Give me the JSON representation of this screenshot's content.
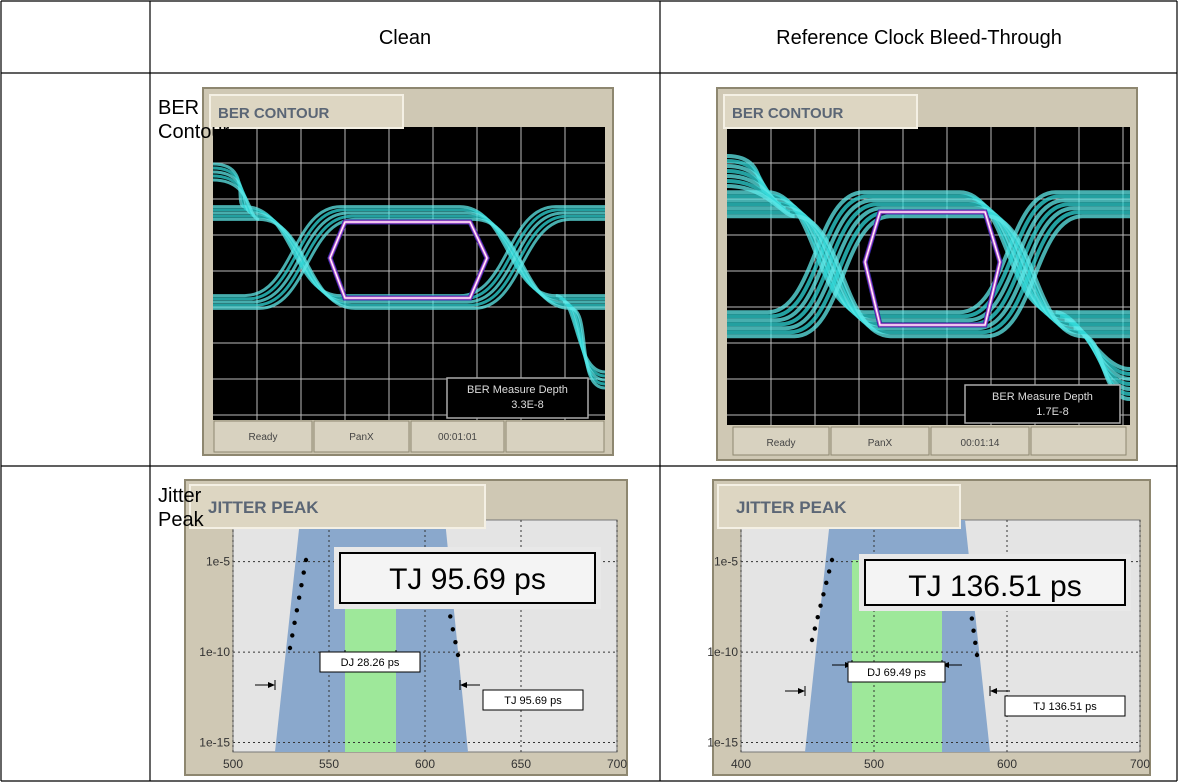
{
  "table": {
    "columns": [
      "Clean",
      "Reference Clock Bleed-Through"
    ],
    "rows": [
      "BER Contour",
      "Jitter Peak"
    ]
  },
  "ber_panels": [
    {
      "title": "BER CONTOUR",
      "depth_label": "BER Measure Depth",
      "depth": "3.3E-8",
      "status": [
        "Ready",
        "PanX",
        "00:01:01"
      ]
    },
    {
      "title": "BER CONTOUR",
      "depth_label": "BER Measure Depth",
      "depth": "1.7E-8",
      "status": [
        "Ready",
        "PanX",
        "00:01:14"
      ]
    }
  ],
  "jitter_panels": [
    {
      "title": "JITTER PEAK",
      "tj_big": "TJ 95.69 ps",
      "dj": "DJ 28.26 ps",
      "tj": "TJ 95.69 ps",
      "log_y": true,
      "ylim": [
        0.002,
        3e-16
      ],
      "yticks": [
        {
          "value": 1e-05,
          "label": "1e-5"
        },
        {
          "value": 1e-10,
          "label": "1e-10"
        },
        {
          "value": 1e-15,
          "label": "1e-15"
        }
      ],
      "xlim": [
        500,
        700
      ],
      "xticks": [
        500,
        550,
        600,
        650,
        700
      ]
    },
    {
      "title": "JITTER PEAK",
      "tj_big": "TJ 136.51 ps",
      "dj": "DJ 69.49 ps",
      "tj": "TJ 136.51 ps",
      "log_y": true,
      "ylim": [
        0.002,
        3e-16
      ],
      "yticks": [
        {
          "value": 1e-05,
          "label": "1e-5"
        },
        {
          "value": 1e-10,
          "label": "1e-10"
        },
        {
          "value": 1e-15,
          "label": "1e-15"
        }
      ],
      "xlim": [
        400,
        700
      ],
      "xticks": [
        400,
        500,
        600,
        700
      ]
    }
  ]
}
